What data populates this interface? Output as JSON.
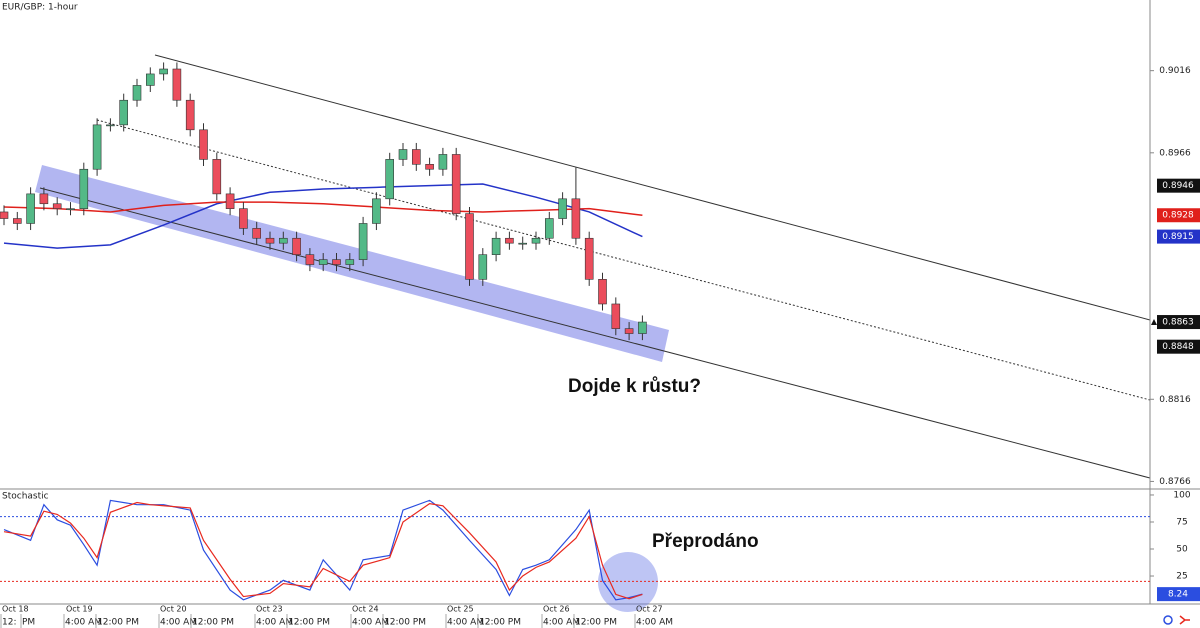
{
  "chart_data": {
    "type": "candlestick",
    "title": "EUR/GBP: 1-hour",
    "ylim": [
      0.8762,
      0.9059
    ],
    "yticks": [
      0.9016,
      0.8966,
      0.8816,
      0.8766
    ],
    "colors": {
      "up": "#53b987",
      "down": "#eb4d5c"
    },
    "candles": {
      "open": [
        0.893,
        0.8926,
        0.8923,
        0.8941,
        0.8935,
        0.8932,
        0.8932,
        0.8956,
        0.8983,
        0.8983,
        0.8998,
        0.9007,
        0.9014,
        0.9017,
        0.8998,
        0.898,
        0.8962,
        0.8941,
        0.8932,
        0.892,
        0.8914,
        0.8911,
        0.8914,
        0.8904,
        0.8898,
        0.8901,
        0.8898,
        0.8901,
        0.8923,
        0.8938,
        0.8962,
        0.8968,
        0.8959,
        0.8956,
        0.8965,
        0.8929,
        0.8889,
        0.8904,
        0.8914,
        0.8911,
        0.8911,
        0.8914,
        0.8926,
        0.8938,
        0.8914,
        0.8889,
        0.8874,
        0.8859,
        0.8856
      ],
      "high": [
        0.8934,
        0.893,
        0.8945,
        0.8945,
        0.8939,
        0.8936,
        0.896,
        0.8987,
        0.8987,
        0.9002,
        0.9011,
        0.9018,
        0.9021,
        0.9021,
        0.9002,
        0.8984,
        0.8966,
        0.8945,
        0.8936,
        0.8924,
        0.8918,
        0.8918,
        0.8918,
        0.8908,
        0.8905,
        0.8905,
        0.8905,
        0.8927,
        0.8942,
        0.8966,
        0.8972,
        0.8972,
        0.8963,
        0.8969,
        0.8969,
        0.8933,
        0.8908,
        0.8918,
        0.8918,
        0.8915,
        0.8918,
        0.893,
        0.8942,
        0.8957,
        0.8918,
        0.8893,
        0.8878,
        0.8863,
        0.8867
      ],
      "low": [
        0.8922,
        0.8919,
        0.8919,
        0.8931,
        0.8928,
        0.8928,
        0.8928,
        0.8952,
        0.8979,
        0.8979,
        0.8994,
        0.9003,
        0.901,
        0.8994,
        0.8976,
        0.8958,
        0.8937,
        0.8928,
        0.8916,
        0.891,
        0.8907,
        0.8907,
        0.89,
        0.8894,
        0.8894,
        0.8894,
        0.8894,
        0.8897,
        0.8919,
        0.8934,
        0.8958,
        0.8955,
        0.8952,
        0.8952,
        0.8925,
        0.8885,
        0.8885,
        0.89,
        0.8907,
        0.8907,
        0.8907,
        0.891,
        0.8922,
        0.891,
        0.8885,
        0.887,
        0.8855,
        0.8852,
        0.8852
      ],
      "close": [
        0.8926,
        0.8923,
        0.8941,
        0.8935,
        0.8932,
        0.8932,
        0.8956,
        0.8983,
        0.8983,
        0.8998,
        0.9007,
        0.9014,
        0.9017,
        0.8998,
        0.898,
        0.8962,
        0.8941,
        0.8932,
        0.892,
        0.8914,
        0.8911,
        0.8914,
        0.8904,
        0.8898,
        0.8901,
        0.8898,
        0.8901,
        0.8923,
        0.8938,
        0.8962,
        0.8968,
        0.8959,
        0.8956,
        0.8965,
        0.8929,
        0.8889,
        0.8904,
        0.8914,
        0.8911,
        0.8911,
        0.8914,
        0.8926,
        0.8938,
        0.8914,
        0.8889,
        0.8874,
        0.8859,
        0.8856,
        0.8863
      ]
    },
    "ma_series": [
      {
        "color": "#2433c8",
        "x": [
          0,
          4,
          8,
          12,
          16,
          20,
          24,
          28,
          32,
          36,
          40,
          44,
          48
        ],
        "values": [
          0.8911,
          0.8908,
          0.891,
          0.8922,
          0.8935,
          0.8942,
          0.8944,
          0.8945,
          0.8946,
          0.8947,
          0.8939,
          0.893,
          0.8915
        ]
      },
      {
        "color": "#e0201b",
        "x": [
          0,
          4,
          8,
          12,
          16,
          20,
          24,
          28,
          32,
          36,
          40,
          44,
          48
        ],
        "values": [
          0.8933,
          0.8932,
          0.893,
          0.8934,
          0.8936,
          0.8936,
          0.8935,
          0.8933,
          0.8931,
          0.893,
          0.8931,
          0.8932,
          0.8928
        ]
      }
    ],
    "level_badges": [
      0.8946,
      0.8848
    ],
    "annotations": [
      "Dojde k růstu?",
      "Přeprodáno"
    ],
    "stochastic": {
      "label": "Stochastic",
      "ylim": [
        -8.3,
        104.6
      ],
      "yticks": [
        100,
        75,
        50,
        25
      ],
      "levels": [
        80,
        20
      ],
      "series": [
        {
          "color": "#2b4ee0",
          "x": [
            0,
            2,
            3,
            4,
            5,
            6,
            7,
            8,
            10,
            11,
            12,
            14,
            15,
            17,
            18,
            20,
            21,
            23,
            24,
            26,
            27,
            29,
            30,
            32,
            33,
            35,
            37,
            38,
            39,
            40,
            41,
            43,
            44,
            45,
            46,
            47,
            48
          ],
          "values": [
            68,
            58,
            91,
            77,
            72,
            54,
            35,
            95,
            91,
            91,
            91,
            86,
            49,
            12,
            3,
            12,
            21,
            12,
            40,
            12,
            40,
            44,
            86,
            95,
            86,
            58,
            31,
            7,
            31,
            35,
            40,
            68,
            86,
            21,
            3,
            5,
            8.24
          ]
        },
        {
          "color": "#e8291f",
          "x": [
            0,
            2,
            3,
            4,
            5,
            6,
            7,
            8,
            10,
            11,
            12,
            14,
            15,
            17,
            18,
            20,
            21,
            23,
            24,
            26,
            27,
            29,
            30,
            32,
            33,
            35,
            37,
            38,
            39,
            40,
            41,
            43,
            44,
            45,
            46,
            47,
            48
          ],
          "values": [
            66,
            62,
            85,
            82,
            74,
            60,
            42,
            84,
            93,
            91,
            90,
            88,
            58,
            22,
            6,
            9,
            18,
            15,
            32,
            20,
            35,
            42,
            75,
            92,
            90,
            65,
            38,
            12,
            25,
            33,
            38,
            60,
            80,
            35,
            8,
            4,
            8
          ]
        }
      ]
    },
    "date_labels": [
      "Oct 18",
      "Oct 19",
      "Oct 20",
      "Oct 23",
      "Oct 24",
      "Oct 25",
      "Oct 26",
      "Oct 27"
    ],
    "time_labels": [
      "12:",
      "PM",
      "4:00 AM",
      "12:00 PM",
      "4:00 AM",
      "12:00 PM",
      "4:00 AM",
      "12:00 PM",
      "4:00 AM",
      "12:00 PM",
      "4:00 AM",
      "12:00 PM",
      "4:00 AM",
      "12:00 PM",
      "4:00 AM"
    ]
  }
}
